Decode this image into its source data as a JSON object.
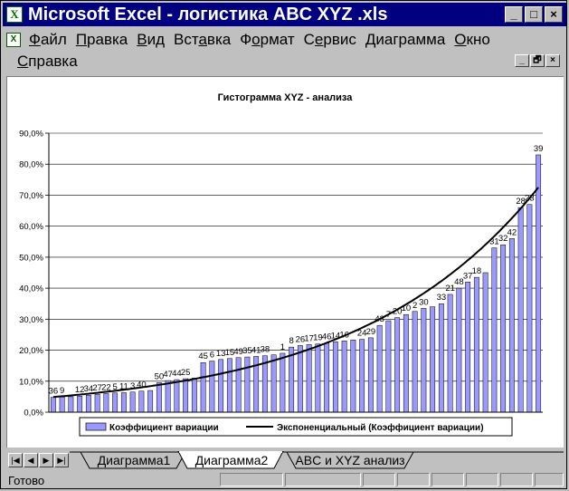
{
  "window": {
    "title": "Microsoft Excel - логистика ABC XYZ .xls",
    "caption_buttons": [
      "_",
      "□",
      "×"
    ],
    "icon": "excel-icon"
  },
  "menu": {
    "row1": [
      {
        "underline": "Ф",
        "rest": "айл"
      },
      {
        "underline": "П",
        "rest": "равка"
      },
      {
        "underline": "В",
        "rest": "ид"
      },
      {
        "underline": "",
        "pre": "Вст",
        "mid": "а",
        "post": "вка"
      },
      {
        "underline": "",
        "pre": "Ф",
        "mid": "о",
        "post": "рмат"
      },
      {
        "underline": "",
        "pre": "С",
        "mid": "е",
        "post": "рвис"
      },
      {
        "underline": "Д",
        "rest": "иаграмма"
      },
      {
        "underline": "О",
        "rest": "кно"
      }
    ],
    "row2": [
      {
        "underline": "С",
        "rest": "правка"
      }
    ],
    "mdi_buttons": [
      "_",
      "🗗",
      "×"
    ]
  },
  "chart_data": {
    "type": "bar",
    "title": "Гистограмма XYZ - анализа",
    "ylim": [
      0,
      90
    ],
    "y_ticks": [
      "0,0%",
      "10,0%",
      "20,0%",
      "30,0%",
      "40,0%",
      "50,0%",
      "60,0%",
      "70,0%",
      "80,0%",
      "90,0%"
    ],
    "grid": true,
    "legend_position": "bottom",
    "series": [
      {
        "name": "Коэффициент вариации",
        "color": "#9999ff",
        "values": [
          4.8,
          4.9,
          5.0,
          5.2,
          5.5,
          5.8,
          6.0,
          6.2,
          6.3,
          6.5,
          6.8,
          7.0,
          9.5,
          10.2,
          10.5,
          10.8,
          11.0,
          16.0,
          16.5,
          17.0,
          17.3,
          17.6,
          17.8,
          18.0,
          18.2,
          18.5,
          19.0,
          21.0,
          21.5,
          21.8,
          22.0,
          22.3,
          22.7,
          23.0,
          23.3,
          23.5,
          24.0,
          28.0,
          29.5,
          30.5,
          31.5,
          32.5,
          33.5,
          34.0,
          35.0,
          38.0,
          40.0,
          42.0,
          43.5,
          45.0,
          53.0,
          54.0,
          56.0,
          66.0,
          67.0,
          83.0
        ]
      },
      {
        "name": "Экспоненциальный (Коэффициент вариации)",
        "color": "#000000",
        "trend": "exponential",
        "start": 4.9,
        "end": 72.5
      }
    ],
    "data_labels": [
      {
        "text": "36",
        "bar": 0
      },
      {
        "text": "9",
        "bar": 1
      },
      {
        "text": "12",
        "bar": 3
      },
      {
        "text": "34",
        "bar": 4
      },
      {
        "text": "27",
        "bar": 5
      },
      {
        "text": "22",
        "bar": 6
      },
      {
        "text": "5",
        "bar": 7
      },
      {
        "text": "11",
        "bar": 8
      },
      {
        "text": "3",
        "bar": 9
      },
      {
        "text": "40",
        "bar": 10
      },
      {
        "text": "50",
        "bar": 12
      },
      {
        "text": "47",
        "bar": 13
      },
      {
        "text": "44",
        "bar": 14
      },
      {
        "text": "25",
        "bar": 15
      },
      {
        "text": "45",
        "bar": 17
      },
      {
        "text": "6",
        "bar": 18
      },
      {
        "text": "13",
        "bar": 19
      },
      {
        "text": "15",
        "bar": 20
      },
      {
        "text": "49",
        "bar": 21
      },
      {
        "text": "35",
        "bar": 22
      },
      {
        "text": "41",
        "bar": 23
      },
      {
        "text": "38",
        "bar": 24
      },
      {
        "text": "1",
        "bar": 26
      },
      {
        "text": "8",
        "bar": 27
      },
      {
        "text": "26",
        "bar": 28
      },
      {
        "text": "17",
        "bar": 29
      },
      {
        "text": "19",
        "bar": 30
      },
      {
        "text": "46",
        "bar": 31
      },
      {
        "text": "14",
        "bar": 32
      },
      {
        "text": "16",
        "bar": 33
      },
      {
        "text": "24",
        "bar": 35
      },
      {
        "text": "29",
        "bar": 36
      },
      {
        "text": "43",
        "bar": 37
      },
      {
        "text": "7",
        "bar": 38
      },
      {
        "text": "20",
        "bar": 39
      },
      {
        "text": "10",
        "bar": 40
      },
      {
        "text": "2",
        "bar": 41
      },
      {
        "text": "30",
        "bar": 42
      },
      {
        "text": "33",
        "bar": 44
      },
      {
        "text": "21",
        "bar": 45
      },
      {
        "text": "48",
        "bar": 46
      },
      {
        "text": "37",
        "bar": 47
      },
      {
        "text": "18",
        "bar": 48
      },
      {
        "text": "31",
        "bar": 50
      },
      {
        "text": "32",
        "bar": 51
      },
      {
        "text": "42",
        "bar": 52
      },
      {
        "text": "28",
        "bar": 53
      },
      {
        "text": "23",
        "bar": 54
      },
      {
        "text": "39",
        "bar": 55
      }
    ]
  },
  "tabs": {
    "nav_buttons": [
      "|◀",
      "◀",
      "▶",
      "▶|"
    ],
    "items": [
      {
        "label": "Диаграмма1",
        "active": false
      },
      {
        "label": "Диаграмма2",
        "active": true
      },
      {
        "label": "ABC и XYZ анализ",
        "active": false
      }
    ]
  },
  "status": {
    "text": "Готово"
  }
}
